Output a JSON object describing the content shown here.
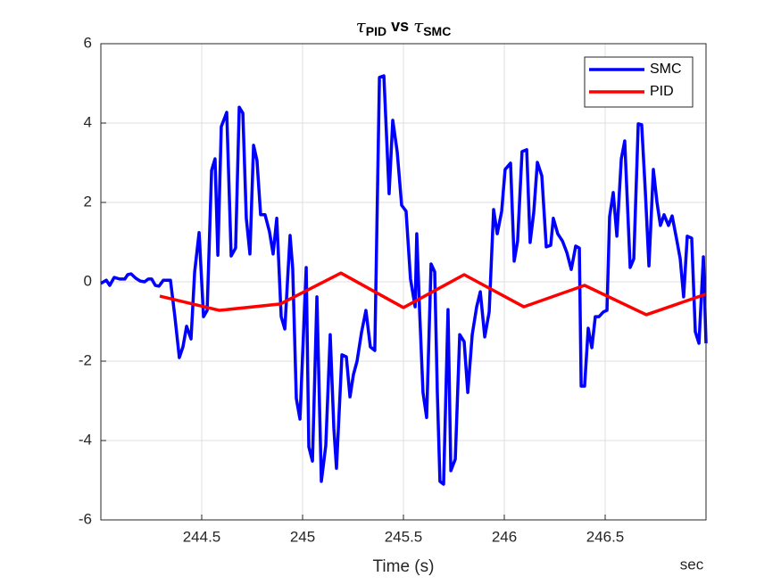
{
  "chart_data": {
    "type": "line",
    "title": [
      "τ",
      "PID",
      " vs ",
      "τ",
      "SMC"
    ],
    "xlabel": "Time (s)",
    "annotation": "sec",
    "xlim": [
      244,
      247
    ],
    "ylim": [
      -6,
      6
    ],
    "xticks": [
      244.5,
      245,
      245.5,
      246,
      246.5
    ],
    "yticks": [
      -6,
      -4,
      -2,
      0,
      2,
      4,
      6
    ],
    "grid": true,
    "legend": "upper right",
    "series": [
      {
        "name": "SMC",
        "color": "#0000ff",
        "x": [
          244.0,
          244.027,
          244.044,
          244.066,
          244.093,
          244.119,
          244.133,
          244.15,
          244.173,
          244.195,
          244.217,
          244.235,
          244.252,
          244.27,
          244.288,
          244.31,
          244.345,
          244.367,
          244.389,
          244.407,
          244.425,
          244.447,
          244.465,
          244.487,
          244.509,
          244.527,
          244.549,
          244.566,
          244.58,
          244.597,
          244.624,
          244.646,
          244.668,
          244.686,
          244.704,
          244.721,
          244.739,
          244.757,
          244.774,
          244.792,
          244.814,
          244.836,
          244.854,
          244.872,
          244.894,
          244.912,
          244.938,
          244.951,
          244.969,
          244.987,
          245.018,
          245.031,
          245.049,
          245.071,
          245.093,
          245.115,
          245.137,
          245.155,
          245.168,
          245.195,
          245.217,
          245.235,
          245.252,
          245.27,
          245.292,
          245.314,
          245.336,
          245.358,
          245.381,
          245.403,
          245.429,
          245.447,
          245.469,
          245.491,
          245.513,
          245.535,
          245.558,
          245.566,
          245.58,
          245.597,
          245.615,
          245.637,
          245.655,
          245.668,
          245.681,
          245.699,
          245.721,
          245.735,
          245.757,
          245.779,
          245.801,
          245.819,
          245.841,
          245.863,
          245.881,
          245.903,
          245.925,
          245.947,
          245.965,
          245.987,
          246.004,
          246.031,
          246.049,
          246.066,
          246.088,
          246.111,
          246.128,
          246.146,
          246.164,
          246.186,
          246.208,
          246.23,
          246.243,
          246.265,
          246.288,
          246.31,
          246.332,
          246.354,
          246.372,
          246.381,
          246.398,
          246.416,
          246.434,
          246.451,
          246.469,
          246.491,
          246.509,
          246.522,
          246.54,
          246.558,
          246.58,
          246.597,
          246.624,
          246.642,
          246.664,
          246.681,
          246.699,
          246.717,
          246.739,
          246.757,
          246.774,
          246.792,
          246.814,
          246.832,
          246.854,
          246.872,
          246.889,
          246.907,
          246.929,
          246.947,
          246.965,
          246.987,
          247.0
        ],
        "values": [
          -0.04,
          0.04,
          -0.09,
          0.11,
          0.07,
          0.07,
          0.18,
          0.2,
          0.09,
          0.02,
          0,
          0.07,
          0.07,
          -0.09,
          -0.11,
          0.04,
          0.04,
          -0.88,
          -1.91,
          -1.64,
          -1.12,
          -1.44,
          0.25,
          1.24,
          -0.88,
          -0.72,
          2.81,
          3.1,
          0.67,
          3.91,
          4.27,
          0.65,
          0.85,
          4.4,
          4.25,
          1.6,
          0.7,
          3.44,
          3.06,
          1.69,
          1.69,
          1.26,
          0.7,
          1.6,
          -0.88,
          -1.19,
          1.17,
          0.34,
          -2.94,
          -3.46,
          0.36,
          -4.16,
          -4.52,
          -0.38,
          -5.03,
          -4.13,
          -1.33,
          -3.69,
          -4.7,
          -1.84,
          -1.89,
          -2.9,
          -2.34,
          -2.0,
          -1.28,
          -0.72,
          -1.64,
          -1.73,
          5.15,
          5.19,
          2.22,
          4.07,
          3.28,
          1.93,
          1.78,
          0.07,
          -0.63,
          1.21,
          -0.72,
          -2.79,
          -3.42,
          0.45,
          0.25,
          -2.79,
          -5.03,
          -5.1,
          -0.7,
          -4.76,
          -4.47,
          -1.33,
          -1.51,
          -2.79,
          -1.33,
          -0.63,
          -0.25,
          -1.39,
          -0.76,
          1.82,
          1.21,
          1.78,
          2.83,
          2.99,
          0.52,
          1.03,
          3.28,
          3.33,
          0.99,
          1.75,
          3.01,
          2.67,
          0.88,
          0.92,
          1.6,
          1.21,
          1.03,
          0.74,
          0.31,
          0.9,
          0.85,
          -2.63,
          -2.63,
          -1.17,
          -1.66,
          -0.88,
          -0.88,
          -0.76,
          -0.72,
          1.64,
          2.25,
          1.15,
          3.1,
          3.55,
          0.36,
          0.58,
          3.98,
          3.96,
          2.29,
          0.4,
          2.83,
          2.0,
          1.42,
          1.69,
          1.42,
          1.66,
          1.08,
          0.58,
          -0.38,
          1.15,
          1.1,
          -1.26,
          -1.55,
          0.63,
          -1.55
        ]
      },
      {
        "name": "PID",
        "color": "#ff0000",
        "x": [
          244.292,
          244.588,
          244.889,
          245.19,
          245.5,
          245.801,
          246.097,
          246.398,
          246.704,
          247.0
        ],
        "values": [
          -0.36,
          -0.72,
          -0.56,
          0.22,
          -0.65,
          0.18,
          -0.63,
          -0.09,
          -0.83,
          -0.31
        ]
      }
    ]
  }
}
